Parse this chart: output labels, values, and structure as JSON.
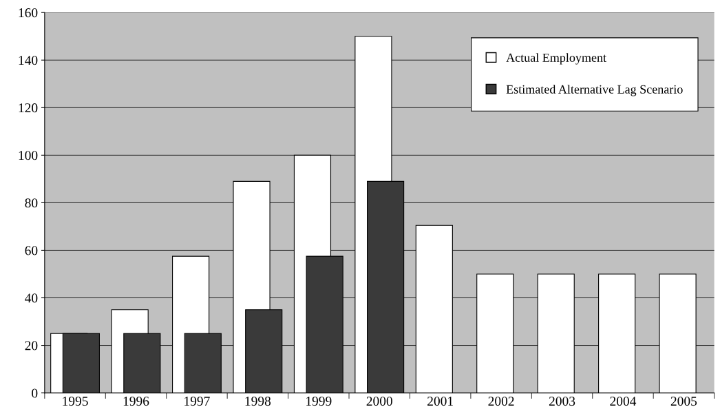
{
  "chart_data": {
    "type": "bar",
    "categories": [
      "1995",
      "1996",
      "1997",
      "1998",
      "1999",
      "2000",
      "2001",
      "2002",
      "2003",
      "2004",
      "2005"
    ],
    "series": [
      {
        "name": "Actual Employment",
        "color": "#ffffff",
        "values": [
          25,
          35,
          57.5,
          89,
          100,
          150,
          70.5,
          50,
          50,
          50,
          50
        ]
      },
      {
        "name": "Estimated Alternative Lag Scenario",
        "color": "#3a3a3a",
        "values": [
          25,
          25,
          25,
          35,
          57.5,
          89,
          null,
          null,
          null,
          null,
          null
        ]
      }
    ],
    "ylim": [
      0,
      160
    ],
    "yticks": [
      0,
      20,
      40,
      60,
      80,
      100,
      120,
      140,
      160
    ],
    "grid": "y",
    "legend": "top right"
  }
}
